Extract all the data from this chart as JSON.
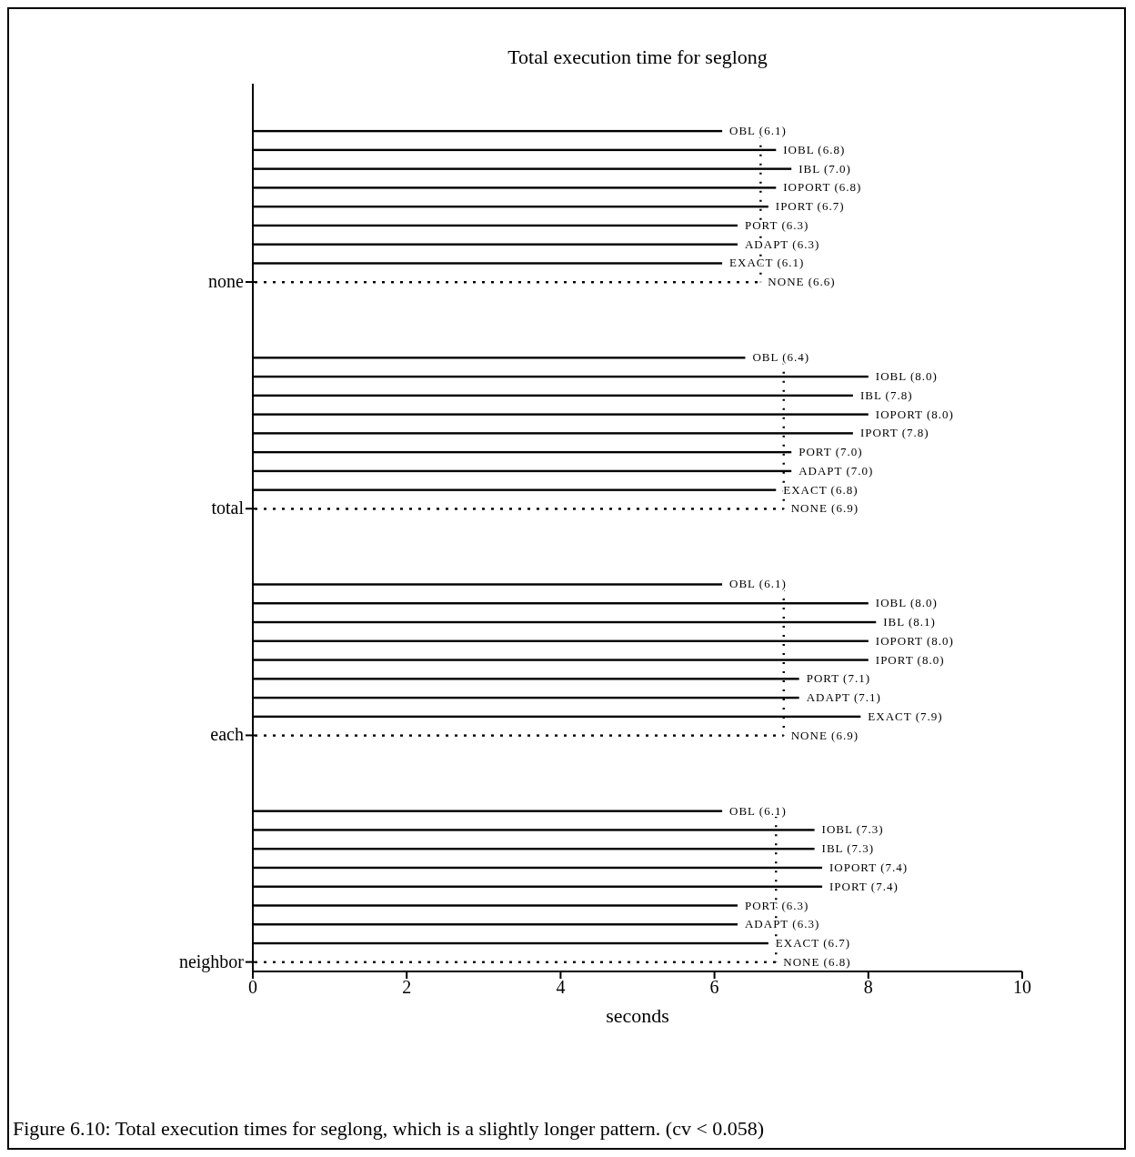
{
  "chart_data": {
    "type": "bar",
    "orientation": "horizontal",
    "stacked": true,
    "title": "Total execution time for seglong",
    "xlabel": "seconds",
    "categories": [
      null,
      null,
      null,
      null,
      null,
      null,
      null,
      null,
      null,
      null,
      "none",
      null,
      null,
      null,
      null,
      null,
      null,
      null,
      null,
      null,
      null,
      null,
      "total",
      null,
      null,
      null,
      null,
      null,
      null,
      null,
      null,
      null,
      null,
      null,
      "each",
      null,
      null,
      null,
      null,
      null,
      null,
      null,
      null,
      null,
      null,
      null,
      "neighbor"
    ],
    "series": [
      {
        "color": "#000000",
        "values": [
          null,
          null,
          6.1,
          null,
          null,
          null,
          null,
          null,
          null,
          null,
          null,
          null,
          null,
          null,
          6.4,
          null,
          null,
          null,
          null,
          null,
          null,
          null,
          null,
          null,
          null,
          null,
          6.1,
          null,
          null,
          null,
          null,
          null,
          null,
          null,
          null,
          null,
          null,
          null,
          6.1,
          null,
          null,
          null,
          null,
          null,
          null,
          null,
          null
        ],
        "value_labels": [
          null,
          null,
          "OBL (6.1)",
          null,
          null,
          null,
          null,
          null,
          null,
          null,
          null,
          null,
          null,
          null,
          "OBL (6.4)",
          null,
          null,
          null,
          null,
          null,
          null,
          null,
          null,
          null,
          null,
          null,
          "OBL (6.1)",
          null,
          null,
          null,
          null,
          null,
          null,
          null,
          null,
          null,
          null,
          null,
          "OBL (6.1)",
          null,
          null,
          null,
          null,
          null,
          null,
          null,
          null
        ]
      },
      {
        "color": "#000000",
        "values": [
          null,
          null,
          null,
          6.8,
          null,
          null,
          null,
          null,
          null,
          null,
          null,
          null,
          null,
          null,
          null,
          8.0,
          null,
          null,
          null,
          null,
          null,
          null,
          null,
          null,
          null,
          null,
          null,
          8.0,
          null,
          null,
          null,
          null,
          null,
          null,
          null,
          null,
          null,
          null,
          null,
          7.3,
          null,
          null,
          null,
          null,
          null,
          null,
          null
        ],
        "value_labels": [
          null,
          null,
          null,
          "IOBL (6.8)",
          null,
          null,
          null,
          null,
          null,
          null,
          null,
          null,
          null,
          null,
          null,
          "IOBL (8.0)",
          null,
          null,
          null,
          null,
          null,
          null,
          null,
          null,
          null,
          null,
          null,
          "IOBL (8.0)",
          null,
          null,
          null,
          null,
          null,
          null,
          null,
          null,
          null,
          null,
          null,
          "IOBL (7.3)",
          null,
          null,
          null,
          null,
          null,
          null,
          null
        ]
      },
      {
        "color": "#000000",
        "values": [
          null,
          null,
          null,
          null,
          7.0,
          null,
          null,
          null,
          null,
          null,
          null,
          null,
          null,
          null,
          null,
          null,
          7.8,
          null,
          null,
          null,
          null,
          null,
          null,
          null,
          null,
          null,
          null,
          null,
          8.1,
          null,
          null,
          null,
          null,
          null,
          null,
          null,
          null,
          null,
          null,
          null,
          7.3,
          null,
          null,
          null,
          null,
          null,
          null
        ],
        "value_labels": [
          null,
          null,
          null,
          null,
          "IBL (7.0)",
          null,
          null,
          null,
          null,
          null,
          null,
          null,
          null,
          null,
          null,
          null,
          "IBL (7.8)",
          null,
          null,
          null,
          null,
          null,
          null,
          null,
          null,
          null,
          null,
          null,
          "IBL (8.1)",
          null,
          null,
          null,
          null,
          null,
          null,
          null,
          null,
          null,
          null,
          null,
          "IBL (7.3)",
          null,
          null,
          null,
          null,
          null,
          null
        ]
      },
      {
        "color": "#000000",
        "values": [
          null,
          null,
          null,
          null,
          null,
          6.8,
          null,
          null,
          null,
          null,
          null,
          null,
          null,
          null,
          null,
          null,
          null,
          8.0,
          null,
          null,
          null,
          null,
          null,
          null,
          null,
          null,
          null,
          null,
          null,
          8.0,
          null,
          null,
          null,
          null,
          null,
          null,
          null,
          null,
          null,
          null,
          null,
          7.4,
          null,
          null,
          null,
          null,
          null
        ],
        "value_labels": [
          null,
          null,
          null,
          null,
          null,
          "IOPORT (6.8)",
          null,
          null,
          null,
          null,
          null,
          null,
          null,
          null,
          null,
          null,
          null,
          "IOPORT (8.0)",
          null,
          null,
          null,
          null,
          null,
          null,
          null,
          null,
          null,
          null,
          null,
          "IOPORT (8.0)",
          null,
          null,
          null,
          null,
          null,
          null,
          null,
          null,
          null,
          null,
          null,
          "IOPORT (7.4)",
          null,
          null,
          null,
          null,
          null
        ]
      },
      {
        "color": "#000000",
        "values": [
          null,
          null,
          null,
          null,
          null,
          null,
          6.7,
          null,
          null,
          null,
          null,
          null,
          null,
          null,
          null,
          null,
          null,
          null,
          7.8,
          null,
          null,
          null,
          null,
          null,
          null,
          null,
          null,
          null,
          null,
          null,
          8.0,
          null,
          null,
          null,
          null,
          null,
          null,
          null,
          null,
          null,
          null,
          null,
          7.4,
          null,
          null,
          null,
          null
        ],
        "value_labels": [
          null,
          null,
          null,
          null,
          null,
          null,
          "IPORT (6.7)",
          null,
          null,
          null,
          null,
          null,
          null,
          null,
          null,
          null,
          null,
          null,
          "IPORT (7.8)",
          null,
          null,
          null,
          null,
          null,
          null,
          null,
          null,
          null,
          null,
          null,
          "IPORT (8.0)",
          null,
          null,
          null,
          null,
          null,
          null,
          null,
          null,
          null,
          null,
          null,
          "IPORT (7.4)",
          null,
          null,
          null,
          null
        ]
      },
      {
        "color": "#000000",
        "values": [
          null,
          null,
          null,
          null,
          null,
          null,
          null,
          6.3,
          null,
          null,
          null,
          null,
          null,
          null,
          null,
          null,
          null,
          null,
          null,
          7.0,
          null,
          null,
          null,
          null,
          null,
          null,
          null,
          null,
          null,
          null,
          null,
          7.1,
          null,
          null,
          null,
          null,
          null,
          null,
          null,
          null,
          null,
          null,
          null,
          6.3,
          null,
          null,
          null
        ],
        "value_labels": [
          null,
          null,
          null,
          null,
          null,
          null,
          null,
          "PORT (6.3)",
          null,
          null,
          null,
          null,
          null,
          null,
          null,
          null,
          null,
          null,
          null,
          "PORT (7.0)",
          null,
          null,
          null,
          null,
          null,
          null,
          null,
          null,
          null,
          null,
          null,
          "PORT (7.1)",
          null,
          null,
          null,
          null,
          null,
          null,
          null,
          null,
          null,
          null,
          null,
          "PORT (6.3)",
          null,
          null,
          null
        ]
      },
      {
        "color": "#000000",
        "values": [
          null,
          null,
          null,
          null,
          null,
          null,
          null,
          null,
          6.3,
          null,
          null,
          null,
          null,
          null,
          null,
          null,
          null,
          null,
          null,
          null,
          7.0,
          null,
          null,
          null,
          null,
          null,
          null,
          null,
          null,
          null,
          null,
          null,
          7.1,
          null,
          null,
          null,
          null,
          null,
          null,
          null,
          null,
          null,
          null,
          null,
          6.3,
          null,
          null
        ],
        "value_labels": [
          null,
          null,
          null,
          null,
          null,
          null,
          null,
          null,
          "ADAPT (6.3)",
          null,
          null,
          null,
          null,
          null,
          null,
          null,
          null,
          null,
          null,
          null,
          "ADAPT (7.0)",
          null,
          null,
          null,
          null,
          null,
          null,
          null,
          null,
          null,
          null,
          null,
          "ADAPT (7.1)",
          null,
          null,
          null,
          null,
          null,
          null,
          null,
          null,
          null,
          null,
          null,
          "ADAPT (6.3)",
          null,
          null
        ]
      },
      {
        "color": "#000000",
        "values": [
          null,
          null,
          null,
          null,
          null,
          null,
          null,
          null,
          null,
          6.1,
          null,
          null,
          null,
          null,
          null,
          null,
          null,
          null,
          null,
          null,
          null,
          6.8,
          null,
          null,
          null,
          null,
          null,
          null,
          null,
          null,
          null,
          null,
          null,
          7.9,
          null,
          null,
          null,
          null,
          null,
          null,
          null,
          null,
          null,
          null,
          null,
          6.7,
          null
        ],
        "value_labels": [
          null,
          null,
          null,
          null,
          null,
          null,
          null,
          null,
          null,
          "EXACT (6.1)",
          null,
          null,
          null,
          null,
          null,
          null,
          null,
          null,
          null,
          null,
          null,
          "EXACT (6.8)",
          null,
          null,
          null,
          null,
          null,
          null,
          null,
          null,
          null,
          null,
          null,
          "EXACT (7.9)",
          null,
          null,
          null,
          null,
          null,
          null,
          null,
          null,
          null,
          null,
          null,
          "EXACT (6.7)",
          null
        ]
      },
      {
        "color": "#000000",
        "line_style": "dotted",
        "values": [
          null,
          null,
          null,
          null,
          null,
          null,
          null,
          null,
          null,
          null,
          6.6,
          null,
          null,
          null,
          null,
          null,
          null,
          null,
          null,
          null,
          null,
          null,
          6.9,
          null,
          null,
          null,
          null,
          null,
          null,
          null,
          null,
          null,
          null,
          null,
          6.9,
          null,
          null,
          null,
          null,
          null,
          null,
          null,
          null,
          null,
          null,
          null,
          6.8
        ],
        "value_labels": [
          null,
          null,
          null,
          null,
          null,
          null,
          null,
          null,
          null,
          null,
          "NONE (6.6)",
          null,
          null,
          null,
          null,
          null,
          null,
          null,
          null,
          null,
          null,
          null,
          "NONE (6.9)",
          null,
          null,
          null,
          null,
          null,
          null,
          null,
          null,
          null,
          null,
          null,
          "NONE (6.9)",
          null,
          null,
          null,
          null,
          null,
          null,
          null,
          null,
          null,
          null,
          null,
          "NONE (6.8)"
        ]
      }
    ],
    "xlim": [
      0,
      10
    ],
    "xticks": [
      0,
      2,
      4,
      6,
      8,
      10
    ],
    "grid": false,
    "legend": false,
    "annotations": [
      "Figure 6.10: Total execution times for seglong, which is a slightly longer pattern. (cv < 0.058)"
    ]
  }
}
